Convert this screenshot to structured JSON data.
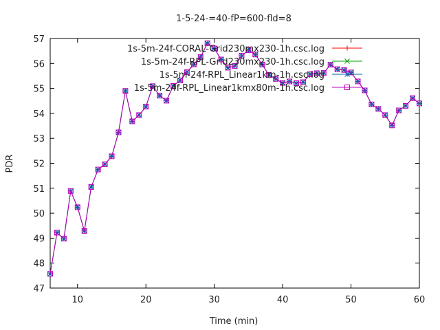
{
  "chart_data": {
    "type": "line",
    "title": "1-5-24-=40-fP=600-fld=8",
    "xlabel": "Time (min)",
    "ylabel": "PDR",
    "xlim": [
      6,
      60
    ],
    "ylim": [
      47,
      57
    ],
    "xticks": [
      10,
      20,
      30,
      40,
      50,
      60
    ],
    "yticks": [
      47,
      48,
      49,
      50,
      51,
      52,
      53,
      54,
      55,
      56,
      57
    ],
    "legend_position": "top-right",
    "x": [
      6,
      7,
      8,
      9,
      10,
      11,
      12,
      13,
      14,
      15,
      16,
      17,
      18,
      19,
      20,
      21,
      22,
      23,
      24,
      25,
      26,
      27,
      28,
      29,
      30,
      31,
      32,
      33,
      34,
      35,
      36,
      37,
      38,
      39,
      40,
      41,
      42,
      43,
      44,
      45,
      46,
      47,
      48,
      49,
      50,
      51,
      52,
      53,
      54,
      55,
      56,
      57,
      58,
      59,
      60
    ],
    "series": [
      {
        "name": "1s-5m-24f-CORAL-Grid230mx230-1h.csc.log",
        "color": "#ff0000",
        "marker": "plus",
        "values": [
          47.57,
          49.22,
          48.98,
          50.89,
          50.24,
          49.29,
          51.05,
          51.75,
          51.96,
          52.28,
          53.24,
          54.9,
          53.68,
          53.93,
          54.27,
          55.09,
          54.71,
          54.51,
          55.1,
          55.32,
          55.65,
          55.96,
          56.26,
          56.81,
          56.6,
          56.16,
          55.83,
          55.9,
          56.31,
          56.53,
          56.36,
          55.96,
          55.54,
          55.38,
          55.22,
          55.28,
          55.21,
          55.25,
          55.57,
          55.61,
          55.62,
          55.95,
          55.77,
          55.74,
          55.64,
          55.28,
          54.92,
          54.36,
          54.18,
          53.93,
          53.52,
          54.12,
          54.3,
          54.61,
          54.4
        ]
      },
      {
        "name": "1s-5m-24f-RPL-Grid230mx230-1h.csc.log",
        "color": "#00a000",
        "marker": "cross",
        "values": [
          47.57,
          49.22,
          48.98,
          50.89,
          50.24,
          49.29,
          51.05,
          51.75,
          51.96,
          52.28,
          53.24,
          54.9,
          53.68,
          53.93,
          54.27,
          55.09,
          54.71,
          54.51,
          55.1,
          55.32,
          55.65,
          55.96,
          56.26,
          56.81,
          56.6,
          56.16,
          55.83,
          55.9,
          56.31,
          56.53,
          56.36,
          55.96,
          55.54,
          55.38,
          55.22,
          55.28,
          55.21,
          55.25,
          55.57,
          55.61,
          55.62,
          55.95,
          55.77,
          55.74,
          55.64,
          55.28,
          54.92,
          54.36,
          54.18,
          53.93,
          53.52,
          54.12,
          54.3,
          54.61,
          54.4
        ]
      },
      {
        "name": "1s-5m-24f-RPL_Linear1km-1h.csc.log",
        "color": "#0060ad",
        "marker": "star",
        "values": [
          47.57,
          49.22,
          48.98,
          50.89,
          50.24,
          49.29,
          51.05,
          51.75,
          51.96,
          52.28,
          53.24,
          54.9,
          53.68,
          53.93,
          54.27,
          55.09,
          54.71,
          54.51,
          55.1,
          55.32,
          55.65,
          55.96,
          56.26,
          56.81,
          56.6,
          56.16,
          55.83,
          55.9,
          56.31,
          56.53,
          56.36,
          55.96,
          55.54,
          55.38,
          55.22,
          55.28,
          55.21,
          55.25,
          55.57,
          55.61,
          55.62,
          55.95,
          55.77,
          55.74,
          55.64,
          55.28,
          54.92,
          54.36,
          54.18,
          53.93,
          53.52,
          54.12,
          54.3,
          54.61,
          54.4
        ]
      },
      {
        "name": "1s-5m-24f-RPL_Linear1kmx80m-1h.csc.log",
        "color": "#c000c0",
        "marker": "square",
        "values": [
          47.57,
          49.22,
          48.98,
          50.89,
          50.24,
          49.29,
          51.05,
          51.75,
          51.96,
          52.28,
          53.24,
          54.9,
          53.68,
          53.93,
          54.27,
          55.09,
          54.71,
          54.51,
          55.1,
          55.32,
          55.65,
          55.96,
          56.26,
          56.81,
          56.6,
          56.16,
          55.83,
          55.9,
          56.31,
          56.53,
          56.36,
          55.96,
          55.54,
          55.38,
          55.22,
          55.28,
          55.21,
          55.25,
          55.57,
          55.61,
          55.62,
          55.95,
          55.77,
          55.74,
          55.64,
          55.28,
          54.92,
          54.36,
          54.18,
          53.93,
          53.52,
          54.12,
          54.3,
          54.61,
          54.4
        ]
      }
    ]
  }
}
